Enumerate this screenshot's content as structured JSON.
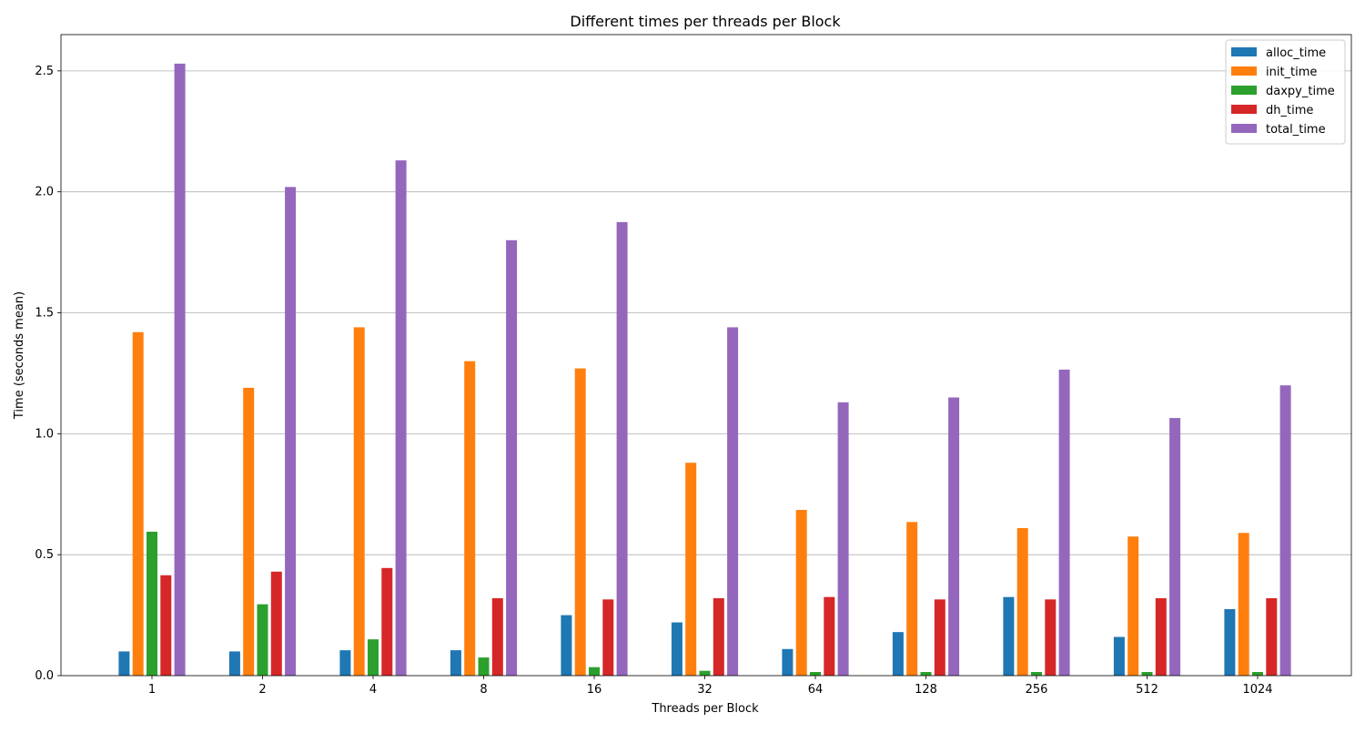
{
  "chart_data": {
    "type": "bar",
    "title": "Different times per threads per Block",
    "xlabel": "Threads per Block",
    "ylabel": "Time (seconds mean)",
    "ylim": [
      0,
      2.65
    ],
    "yticks": [
      "0.0",
      "0.5",
      "1.0",
      "1.5",
      "2.0",
      "2.5"
    ],
    "grid": "horizontal",
    "legend_position": "top-right",
    "categories": [
      "1",
      "2",
      "4",
      "8",
      "16",
      "32",
      "64",
      "128",
      "256",
      "512",
      "1024"
    ],
    "series": [
      {
        "name": "alloc_time",
        "color": "#1f77b4",
        "values": [
          0.1,
          0.1,
          0.105,
          0.105,
          0.25,
          0.22,
          0.11,
          0.18,
          0.325,
          0.16,
          0.275
        ]
      },
      {
        "name": "init_time",
        "color": "#ff7f0e",
        "values": [
          1.42,
          1.19,
          1.44,
          1.3,
          1.27,
          0.88,
          0.685,
          0.635,
          0.61,
          0.575,
          0.59
        ]
      },
      {
        "name": "daxpy_time",
        "color": "#2ca02c",
        "values": [
          0.595,
          0.295,
          0.15,
          0.075,
          0.035,
          0.02,
          0.015,
          0.015,
          0.015,
          0.015,
          0.015
        ]
      },
      {
        "name": "dh_time",
        "color": "#d62728",
        "values": [
          0.415,
          0.43,
          0.445,
          0.32,
          0.315,
          0.32,
          0.325,
          0.315,
          0.315,
          0.32,
          0.32
        ]
      },
      {
        "name": "total_time",
        "color": "#9467bd",
        "values": [
          2.53,
          2.02,
          2.13,
          1.8,
          1.875,
          1.44,
          1.13,
          1.15,
          1.265,
          1.065,
          1.2
        ]
      }
    ]
  }
}
